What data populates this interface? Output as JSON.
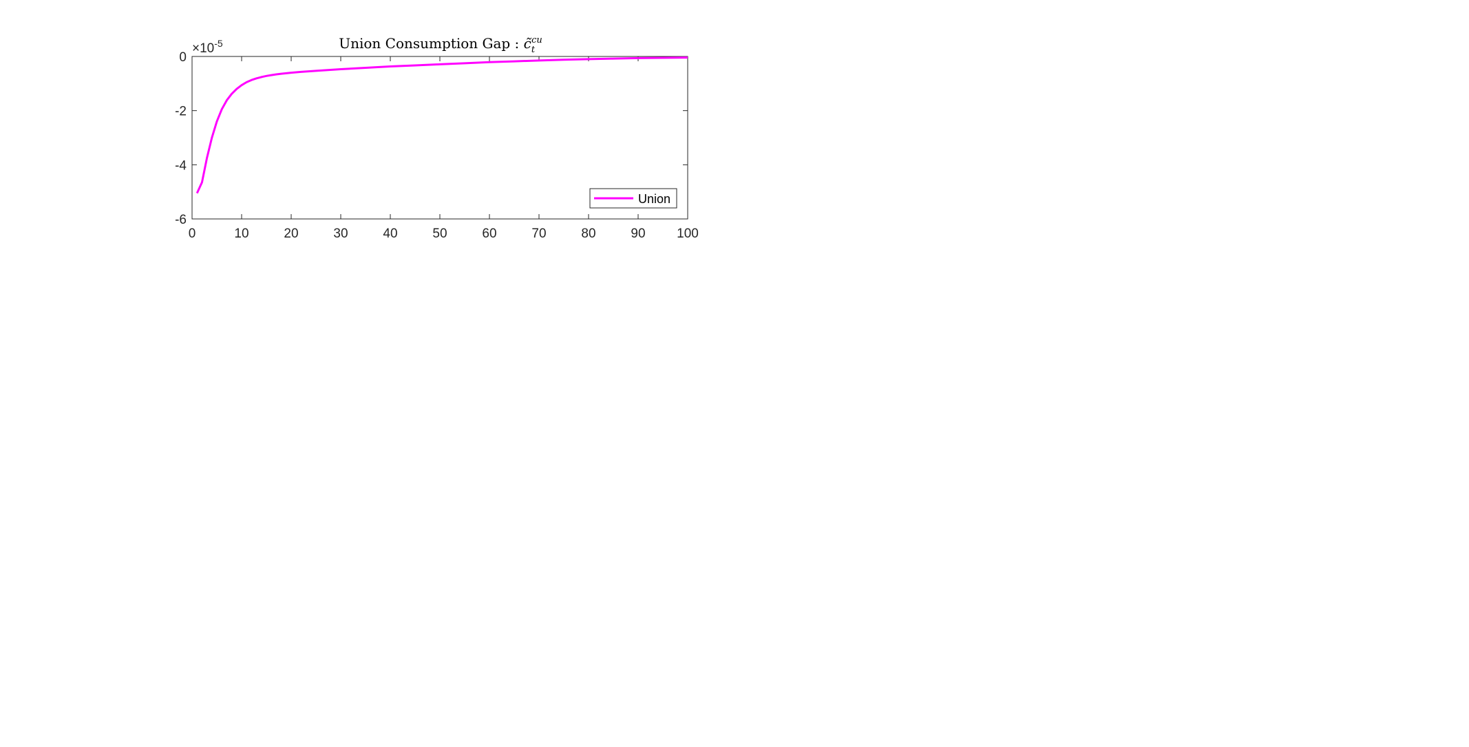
{
  "chart_data": {
    "type": "line",
    "title": {
      "prefix": "Union Consumption Gap : ",
      "symbol_base": "c̃",
      "symbol_sub": "t",
      "symbol_sup": "cu"
    },
    "xlabel": "",
    "ylabel": "",
    "xlim": [
      0,
      100
    ],
    "ylim": [
      -6e-05,
      0
    ],
    "x_ticks": [
      0,
      10,
      20,
      30,
      40,
      50,
      60,
      70,
      80,
      90,
      100
    ],
    "x_tick_labels": [
      "0",
      "10",
      "20",
      "30",
      "40",
      "50",
      "60",
      "70",
      "80",
      "90",
      "100"
    ],
    "y_ticks": [
      0,
      -2e-05,
      -4e-05,
      -6e-05
    ],
    "y_tick_labels": [
      "0",
      "-2",
      "-4",
      "-6"
    ],
    "y_exponent_label": {
      "times": "×",
      "base": "10",
      "power": "-5"
    },
    "grid": false,
    "legend_position": "bottom-right",
    "series": [
      {
        "name": "Union",
        "color": "#ff00ff",
        "x": [
          1,
          2,
          3,
          4,
          5,
          6,
          7,
          8,
          9,
          10,
          11,
          12,
          13,
          14,
          15,
          16,
          17,
          18,
          19,
          20,
          22,
          25,
          30,
          35,
          40,
          45,
          50,
          55,
          60,
          65,
          70,
          75,
          80,
          85,
          90,
          95,
          100
        ],
        "y": [
          -5.05e-05,
          -4.65e-05,
          -3.75e-05,
          -3e-05,
          -2.4e-05,
          -1.95e-05,
          -1.62e-05,
          -1.38e-05,
          -1.2e-05,
          -1.06e-05,
          -9.5e-06,
          -8.7e-06,
          -8.1e-06,
          -7.6e-06,
          -7.2e-06,
          -6.9e-06,
          -6.6e-06,
          -6.4e-06,
          -6.2e-06,
          -6e-06,
          -5.7e-06,
          -5.3e-06,
          -4.7e-06,
          -4.2e-06,
          -3.7e-06,
          -3.3e-06,
          -2.9e-06,
          -2.5e-06,
          -2.1e-06,
          -1.8e-06,
          -1.5e-06,
          -1.2e-06,
          -1e-06,
          -8e-07,
          -6e-07,
          -5e-07,
          -4e-07
        ]
      }
    ]
  }
}
